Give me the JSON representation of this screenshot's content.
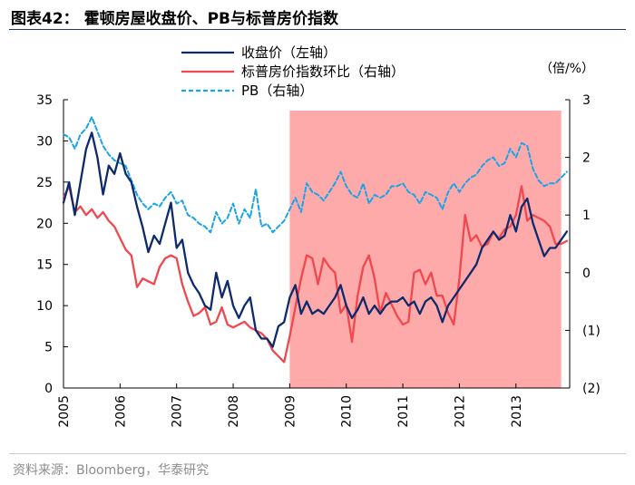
{
  "title": "图表42： 霍顿房屋收盘价、PB与标普房价指数",
  "source": "资料来源：Bloomberg，华泰研究",
  "chart_data": {
    "type": "line",
    "right_unit": "（倍/%）",
    "shaded_region": {
      "x_start": 2009.0,
      "x_end": 2013.8,
      "color": "#ffaaaa"
    },
    "x_axis": {
      "range": [
        2005,
        2013.95
      ],
      "ticks": [
        "2005",
        "2006",
        "2007",
        "2008",
        "2009",
        "2010",
        "2011",
        "2012",
        "2013"
      ]
    },
    "y_left": {
      "range": [
        0,
        35
      ],
      "ticks": [
        "0",
        "5",
        "10",
        "15",
        "20",
        "25",
        "30",
        "35"
      ]
    },
    "y_right": {
      "range": [
        -2,
        3
      ],
      "tick_values": [
        -2,
        -1,
        0,
        1,
        2,
        3
      ],
      "ticks": [
        "(2)",
        "(1)",
        "0",
        "1",
        "2",
        "3"
      ]
    },
    "legend": {
      "placement": "top-center"
    },
    "series": [
      {
        "name": "收盘价（左轴）",
        "axis": "left",
        "color": "#0d2a6b",
        "style": "solid",
        "points": [
          [
            2005.0,
            22.5
          ],
          [
            2005.1,
            25
          ],
          [
            2005.2,
            21
          ],
          [
            2005.3,
            25
          ],
          [
            2005.4,
            29
          ],
          [
            2005.5,
            31
          ],
          [
            2005.6,
            28
          ],
          [
            2005.7,
            23.5
          ],
          [
            2005.8,
            27
          ],
          [
            2005.9,
            26
          ],
          [
            2006.0,
            28.5
          ],
          [
            2006.1,
            26
          ],
          [
            2006.2,
            25
          ],
          [
            2006.3,
            22
          ],
          [
            2006.4,
            19.5
          ],
          [
            2006.5,
            16.5
          ],
          [
            2006.6,
            18.5
          ],
          [
            2006.7,
            17.5
          ],
          [
            2006.8,
            20
          ],
          [
            2006.9,
            22.5
          ],
          [
            2007.0,
            17
          ],
          [
            2007.1,
            18
          ],
          [
            2007.2,
            14
          ],
          [
            2007.3,
            12.5
          ],
          [
            2007.4,
            11.5
          ],
          [
            2007.5,
            10
          ],
          [
            2007.6,
            9.5
          ],
          [
            2007.7,
            14
          ],
          [
            2007.8,
            11
          ],
          [
            2007.9,
            13
          ],
          [
            2008.0,
            10
          ],
          [
            2008.1,
            8.5
          ],
          [
            2008.2,
            10
          ],
          [
            2008.3,
            11
          ],
          [
            2008.4,
            7
          ],
          [
            2008.5,
            6
          ],
          [
            2008.6,
            6
          ],
          [
            2008.7,
            5
          ],
          [
            2008.8,
            7.5
          ],
          [
            2008.9,
            8
          ],
          [
            2009.0,
            11
          ],
          [
            2009.1,
            12.5
          ],
          [
            2009.2,
            9
          ],
          [
            2009.3,
            10.5
          ],
          [
            2009.4,
            9
          ],
          [
            2009.5,
            9.5
          ],
          [
            2009.6,
            9
          ],
          [
            2009.7,
            10
          ],
          [
            2009.8,
            11
          ],
          [
            2009.9,
            12.5
          ],
          [
            2010.0,
            10
          ],
          [
            2010.1,
            8.5
          ],
          [
            2010.2,
            9.5
          ],
          [
            2010.3,
            11
          ],
          [
            2010.4,
            9
          ],
          [
            2010.5,
            10
          ],
          [
            2010.6,
            9
          ],
          [
            2010.7,
            10
          ],
          [
            2010.8,
            10.5
          ],
          [
            2010.9,
            10.5
          ],
          [
            2011.0,
            11
          ],
          [
            2011.1,
            10
          ],
          [
            2011.2,
            10.5
          ],
          [
            2011.3,
            9
          ],
          [
            2011.4,
            10.5
          ],
          [
            2011.5,
            11
          ],
          [
            2011.6,
            10
          ],
          [
            2011.7,
            8
          ],
          [
            2011.8,
            10
          ],
          [
            2011.9,
            11
          ],
          [
            2012.0,
            12
          ],
          [
            2012.1,
            13
          ],
          [
            2012.2,
            14
          ],
          [
            2012.3,
            15
          ],
          [
            2012.4,
            17
          ],
          [
            2012.5,
            18
          ],
          [
            2012.6,
            19
          ],
          [
            2012.7,
            18
          ],
          [
            2012.8,
            18.5
          ],
          [
            2012.9,
            21
          ],
          [
            2013.0,
            19
          ],
          [
            2013.1,
            22
          ],
          [
            2013.2,
            23
          ],
          [
            2013.3,
            20
          ],
          [
            2013.4,
            18
          ],
          [
            2013.5,
            16
          ],
          [
            2013.6,
            17
          ],
          [
            2013.7,
            17
          ],
          [
            2013.8,
            18
          ],
          [
            2013.9,
            19
          ]
        ]
      },
      {
        "name": "标普房价指数环比（右轴）",
        "axis": "right",
        "color": "#f0484f",
        "style": "solid",
        "points": [
          [
            2005.0,
            1.3
          ],
          [
            2005.1,
            1.5
          ],
          [
            2005.2,
            1.05
          ],
          [
            2005.3,
            1.15
          ],
          [
            2005.4,
            1.0
          ],
          [
            2005.5,
            1.1
          ],
          [
            2005.6,
            0.95
          ],
          [
            2005.7,
            1.05
          ],
          [
            2005.8,
            0.9
          ],
          [
            2005.9,
            0.8
          ],
          [
            2006.0,
            0.6
          ],
          [
            2006.1,
            0.4
          ],
          [
            2006.2,
            0.3
          ],
          [
            2006.3,
            -0.25
          ],
          [
            2006.4,
            -0.1
          ],
          [
            2006.5,
            -0.15
          ],
          [
            2006.6,
            -0.2
          ],
          [
            2006.7,
            0.1
          ],
          [
            2006.8,
            0.25
          ],
          [
            2006.9,
            0.3
          ],
          [
            2007.0,
            0.25
          ],
          [
            2007.1,
            -0.2
          ],
          [
            2007.2,
            -0.5
          ],
          [
            2007.3,
            -0.75
          ],
          [
            2007.4,
            -0.7
          ],
          [
            2007.5,
            -0.6
          ],
          [
            2007.6,
            -0.9
          ],
          [
            2007.7,
            -0.85
          ],
          [
            2007.8,
            -0.6
          ],
          [
            2007.9,
            -0.9
          ],
          [
            2008.0,
            -0.95
          ],
          [
            2008.1,
            -0.9
          ],
          [
            2008.2,
            -0.85
          ],
          [
            2008.3,
            -0.95
          ],
          [
            2008.4,
            -1.0
          ],
          [
            2008.5,
            -1.05
          ],
          [
            2008.6,
            -1.15
          ],
          [
            2008.7,
            -1.35
          ],
          [
            2008.8,
            -1.45
          ],
          [
            2008.9,
            -1.55
          ],
          [
            2009.0,
            -1.1
          ],
          [
            2009.1,
            -0.6
          ],
          [
            2009.2,
            -0.1
          ],
          [
            2009.3,
            0.3
          ],
          [
            2009.4,
            0.25
          ],
          [
            2009.5,
            -0.2
          ],
          [
            2009.6,
            0.25
          ],
          [
            2009.7,
            0.1
          ],
          [
            2009.8,
            0.0
          ],
          [
            2009.9,
            -0.7
          ],
          [
            2010.0,
            -0.55
          ],
          [
            2010.1,
            -1.2
          ],
          [
            2010.2,
            -0.4
          ],
          [
            2010.3,
            0.1
          ],
          [
            2010.4,
            0.3
          ],
          [
            2010.5,
            -0.1
          ],
          [
            2010.6,
            -0.7
          ],
          [
            2010.7,
            -0.35
          ],
          [
            2010.8,
            -0.55
          ],
          [
            2010.9,
            -0.75
          ],
          [
            2011.0,
            -0.9
          ],
          [
            2011.1,
            -0.85
          ],
          [
            2011.2,
            0.0
          ],
          [
            2011.3,
            0.05
          ],
          [
            2011.4,
            -0.2
          ],
          [
            2011.5,
            0.0
          ],
          [
            2011.6,
            -0.4
          ],
          [
            2011.7,
            -0.4
          ],
          [
            2011.8,
            -0.7
          ],
          [
            2011.9,
            -0.9
          ],
          [
            2012.0,
            -0.1
          ],
          [
            2012.1,
            1.0
          ],
          [
            2012.2,
            0.55
          ],
          [
            2012.3,
            0.65
          ],
          [
            2012.4,
            0.45
          ],
          [
            2012.5,
            0.5
          ],
          [
            2012.6,
            0.7
          ],
          [
            2012.7,
            0.6
          ],
          [
            2012.8,
            0.75
          ],
          [
            2012.9,
            0.8
          ],
          [
            2013.0,
            1.0
          ],
          [
            2013.1,
            1.5
          ],
          [
            2013.2,
            0.9
          ],
          [
            2013.3,
            1.0
          ],
          [
            2013.4,
            0.95
          ],
          [
            2013.5,
            0.9
          ],
          [
            2013.6,
            0.8
          ],
          [
            2013.7,
            0.5
          ],
          [
            2013.8,
            0.5
          ],
          [
            2013.9,
            0.55
          ]
        ]
      },
      {
        "name": "PB（右轴）",
        "axis": "right",
        "color": "#1aa3e8",
        "style": "dashed",
        "points": [
          [
            2005.0,
            2.4
          ],
          [
            2005.1,
            2.35
          ],
          [
            2005.2,
            2.15
          ],
          [
            2005.3,
            2.4
          ],
          [
            2005.4,
            2.5
          ],
          [
            2005.5,
            2.7
          ],
          [
            2005.6,
            2.45
          ],
          [
            2005.7,
            2.2
          ],
          [
            2005.8,
            2.05
          ],
          [
            2005.9,
            1.95
          ],
          [
            2006.0,
            1.9
          ],
          [
            2006.1,
            1.85
          ],
          [
            2006.2,
            1.6
          ],
          [
            2006.3,
            1.35
          ],
          [
            2006.4,
            1.2
          ],
          [
            2006.5,
            1.1
          ],
          [
            2006.6,
            1.2
          ],
          [
            2006.7,
            1.15
          ],
          [
            2006.8,
            1.3
          ],
          [
            2006.9,
            1.4
          ],
          [
            2007.0,
            1.2
          ],
          [
            2007.1,
            1.25
          ],
          [
            2007.2,
            1.0
          ],
          [
            2007.3,
            0.95
          ],
          [
            2007.4,
            0.85
          ],
          [
            2007.5,
            0.8
          ],
          [
            2007.6,
            0.7
          ],
          [
            2007.7,
            1.05
          ],
          [
            2007.8,
            0.85
          ],
          [
            2007.9,
            0.95
          ],
          [
            2008.0,
            1.2
          ],
          [
            2008.1,
            0.85
          ],
          [
            2008.2,
            1.1
          ],
          [
            2008.3,
            0.95
          ],
          [
            2008.4,
            1.45
          ],
          [
            2008.5,
            0.8
          ],
          [
            2008.6,
            0.85
          ],
          [
            2008.7,
            0.7
          ],
          [
            2008.8,
            0.8
          ],
          [
            2008.9,
            0.9
          ],
          [
            2009.0,
            1.1
          ],
          [
            2009.1,
            1.3
          ],
          [
            2009.2,
            1.05
          ],
          [
            2009.3,
            1.55
          ],
          [
            2009.4,
            1.4
          ],
          [
            2009.5,
            1.35
          ],
          [
            2009.6,
            1.25
          ],
          [
            2009.7,
            1.4
          ],
          [
            2009.8,
            1.55
          ],
          [
            2009.9,
            1.75
          ],
          [
            2010.0,
            1.5
          ],
          [
            2010.1,
            1.35
          ],
          [
            2010.2,
            1.3
          ],
          [
            2010.3,
            1.55
          ],
          [
            2010.4,
            1.2
          ],
          [
            2010.5,
            1.35
          ],
          [
            2010.6,
            1.3
          ],
          [
            2010.7,
            1.35
          ],
          [
            2010.8,
            1.5
          ],
          [
            2010.9,
            1.5
          ],
          [
            2011.0,
            1.55
          ],
          [
            2011.1,
            1.4
          ],
          [
            2011.2,
            1.35
          ],
          [
            2011.3,
            1.2
          ],
          [
            2011.4,
            1.4
          ],
          [
            2011.5,
            1.35
          ],
          [
            2011.6,
            1.3
          ],
          [
            2011.7,
            1.1
          ],
          [
            2011.8,
            1.4
          ],
          [
            2011.9,
            1.55
          ],
          [
            2012.0,
            1.4
          ],
          [
            2012.1,
            1.55
          ],
          [
            2012.2,
            1.65
          ],
          [
            2012.3,
            1.7
          ],
          [
            2012.4,
            1.85
          ],
          [
            2012.5,
            1.95
          ],
          [
            2012.6,
            2.0
          ],
          [
            2012.7,
            1.85
          ],
          [
            2012.8,
            1.9
          ],
          [
            2012.9,
            2.15
          ],
          [
            2013.0,
            2.0
          ],
          [
            2013.1,
            2.25
          ],
          [
            2013.2,
            2.2
          ],
          [
            2013.3,
            1.8
          ],
          [
            2013.4,
            1.6
          ],
          [
            2013.5,
            1.5
          ],
          [
            2013.6,
            1.55
          ],
          [
            2013.7,
            1.55
          ],
          [
            2013.8,
            1.65
          ],
          [
            2013.9,
            1.75
          ]
        ]
      }
    ]
  }
}
